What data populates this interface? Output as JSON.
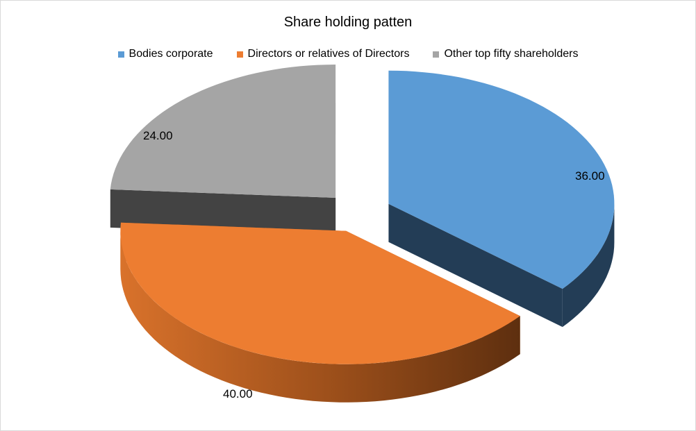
{
  "chart_data": {
    "type": "pie",
    "title": "Share holding patten",
    "legend_position": "top",
    "exploded": true,
    "style_3d": true,
    "series": [
      {
        "name": "Bodies corporate",
        "value": 36.0,
        "label": "36.00",
        "color": "#5b9bd5",
        "side_color": "#233d56"
      },
      {
        "name": "Directors or relatives of Directors",
        "value": 40.0,
        "label": "40.00",
        "color": "#ed7d31",
        "side_color": "#c0611f"
      },
      {
        "name": "Other top fifty shareholders",
        "value": 24.0,
        "label": "24.00",
        "color": "#a5a5a5",
        "side_color": "#434343"
      }
    ]
  }
}
